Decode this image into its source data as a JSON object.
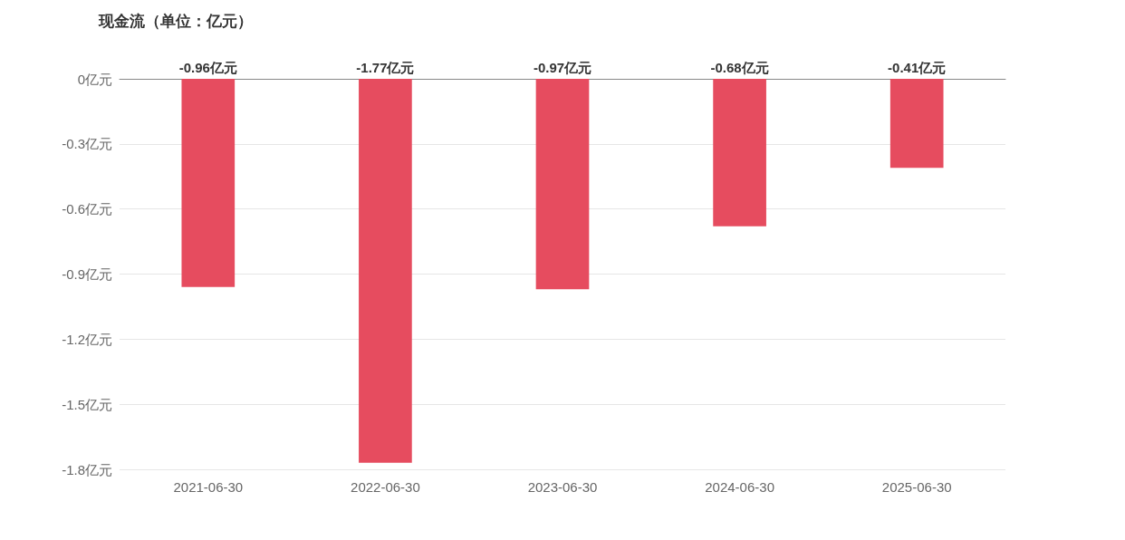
{
  "chart_data": {
    "type": "bar",
    "title": "现金流（单位：亿元）",
    "categories": [
      "2021-06-30",
      "2022-06-30",
      "2023-06-30",
      "2024-06-30",
      "2025-06-30"
    ],
    "values": [
      -0.96,
      -1.77,
      -0.97,
      -0.68,
      -0.41
    ],
    "value_labels": [
      "-0.96亿元",
      "-1.77亿元",
      "-0.97亿元",
      "-0.68亿元",
      "-0.41亿元"
    ],
    "color": "#e64c5f",
    "ylim": [
      -1.8,
      0
    ],
    "yticks": [
      {
        "value": 0,
        "label": "0亿元"
      },
      {
        "value": -0.3,
        "label": "-0.3亿元"
      },
      {
        "value": -0.6,
        "label": "-0.6亿元"
      },
      {
        "value": -0.9,
        "label": "-0.9亿元"
      },
      {
        "value": -1.2,
        "label": "-1.2亿元"
      },
      {
        "value": -1.5,
        "label": "-1.5亿元"
      },
      {
        "value": -1.8,
        "label": "-1.8亿元"
      }
    ],
    "grid": "y"
  }
}
